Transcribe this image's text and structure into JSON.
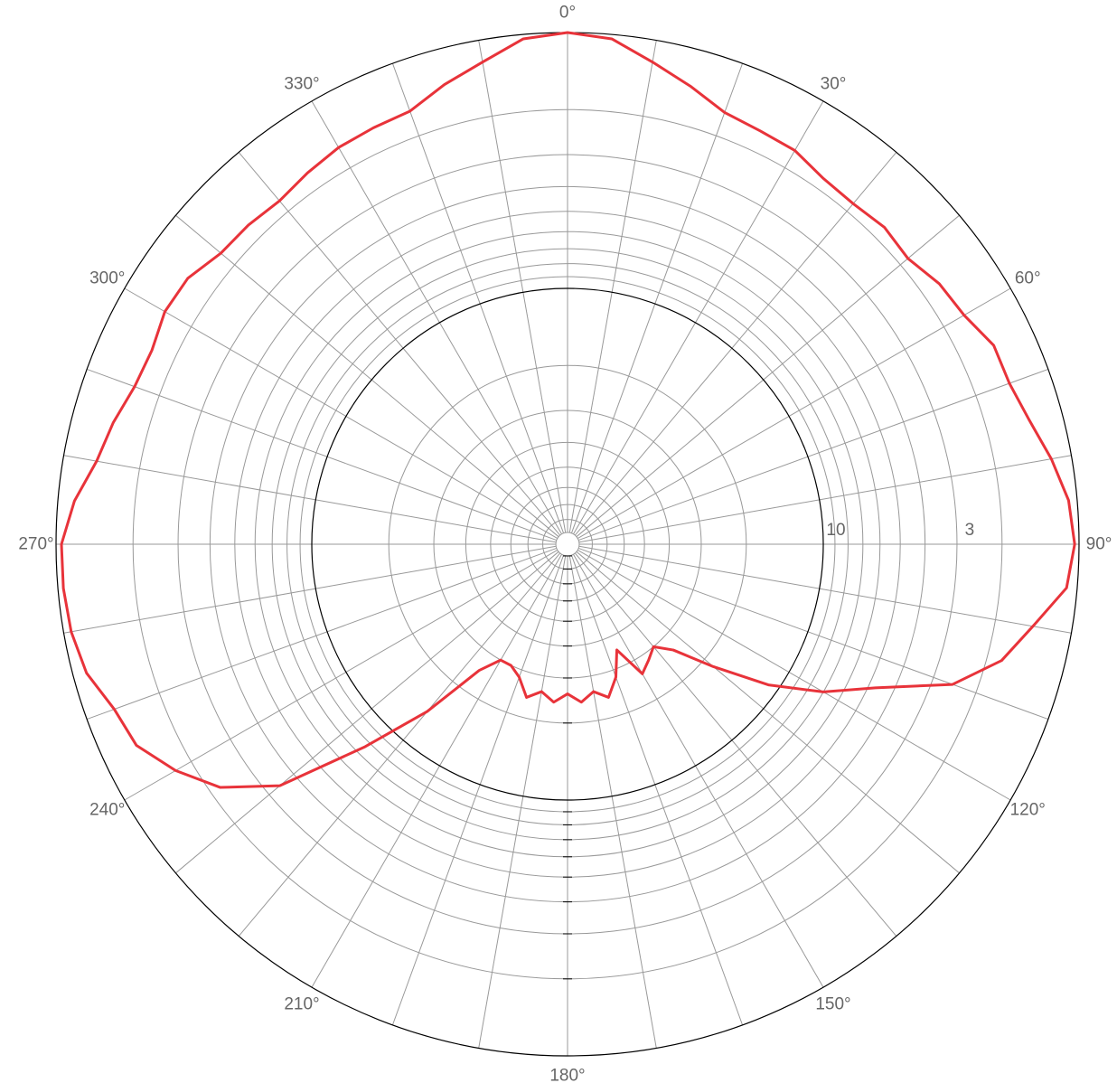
{
  "chart_data": {
    "type": "polar-line",
    "title": "",
    "colors": {
      "series": "#e8333a",
      "major_ring": "#000000",
      "minor_ring": "#999999",
      "spoke": "#999999",
      "label": "#666666"
    },
    "angle_labels": [
      "0°",
      "30°",
      "60°",
      "90°",
      "120°",
      "150°",
      "180°",
      "210°",
      "240°",
      "270°",
      "300°",
      "330°"
    ],
    "ring_labels": [
      "10",
      "3"
    ],
    "radial_axis": {
      "type": "log",
      "direction": "reversed",
      "center_value": 100,
      "outer_value": 1,
      "labeled_ticks": [
        10,
        3
      ]
    },
    "grid": true,
    "series": [
      {
        "angles": [
          0,
          5,
          10,
          15,
          20,
          25,
          30,
          35,
          40,
          45,
          50,
          55,
          60,
          65,
          70,
          75,
          80,
          85,
          90,
          95,
          100,
          105,
          110,
          115,
          120,
          125,
          130,
          135,
          140,
          145,
          150,
          155,
          160,
          165,
          170,
          175,
          180,
          185,
          190,
          195,
          200,
          205,
          210,
          215,
          220,
          225,
          230,
          235,
          240,
          245,
          250,
          255,
          260,
          265,
          270,
          275,
          280,
          285,
          290,
          295,
          300,
          305,
          310,
          315,
          320,
          325,
          330,
          335,
          340,
          345,
          350,
          355
        ],
        "values": [
          1.0,
          1.04,
          1.22,
          1.4,
          1.6,
          1.65,
          1.67,
          1.8,
          1.83,
          1.77,
          1.83,
          1.68,
          1.62,
          1.45,
          1.45,
          1.35,
          1.2,
          1.08,
          1.04,
          1.1,
          1.42,
          1.75,
          2.5,
          4.7,
          7.0,
          11.0,
          18.0,
          26.0,
          30.0,
          28.0,
          26.0,
          35.0,
          28.0,
          24.0,
          26.0,
          24.0,
          26.0,
          24.0,
          26.0,
          24.0,
          28.0,
          30.0,
          30.0,
          25.0,
          14.0,
          7.6,
          3.4,
          2.2,
          1.7,
          1.38,
          1.3,
          1.13,
          1.07,
          1.05,
          1.05,
          1.16,
          1.35,
          1.45,
          1.58,
          1.61,
          1.52,
          1.54,
          1.7,
          1.72,
          1.77,
          1.69,
          1.62,
          1.6,
          1.58,
          1.38,
          1.22,
          1.04
        ]
      }
    ]
  }
}
